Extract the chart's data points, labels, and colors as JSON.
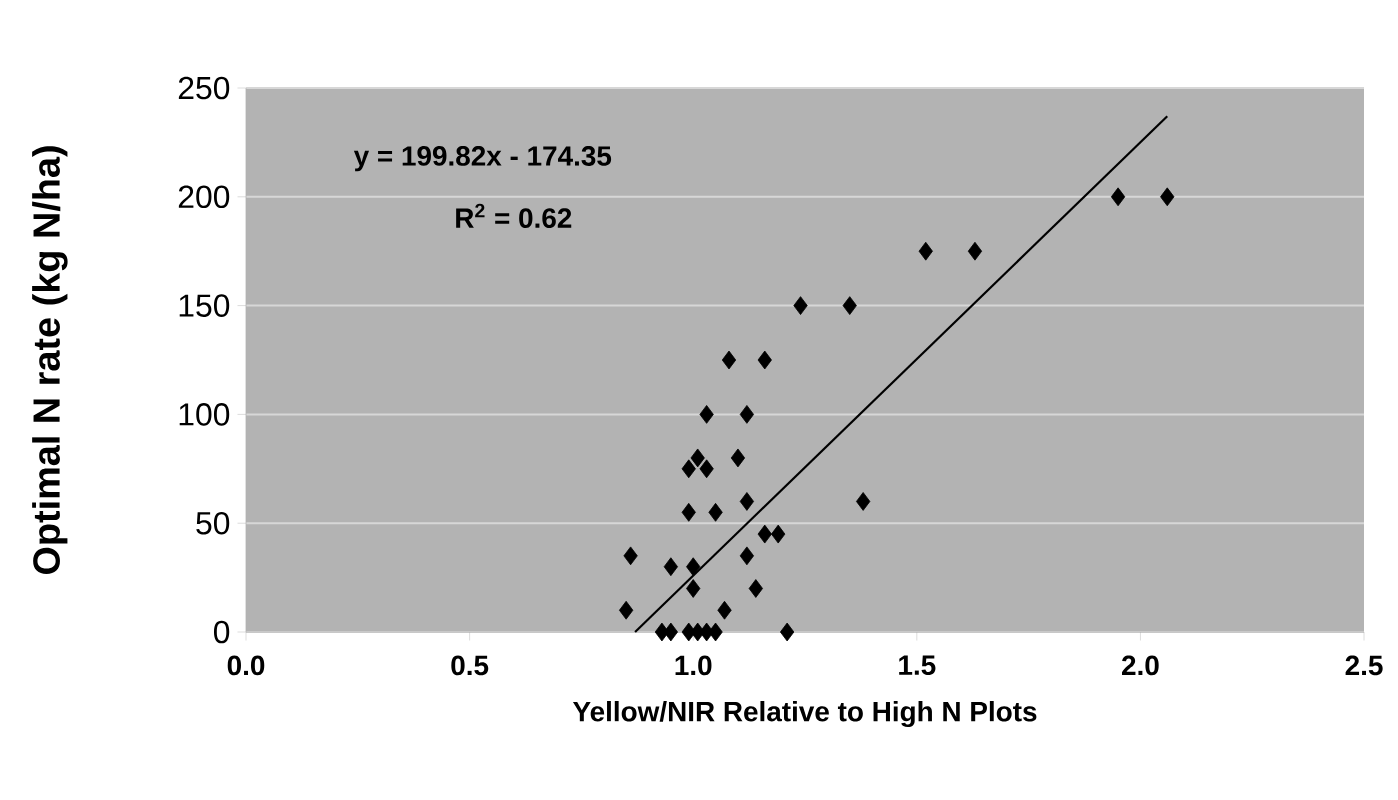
{
  "chart_data": {
    "type": "scatter",
    "xlabel": "Yellow/NIR Relative to High N Plots",
    "ylabel": "Optimal N rate (kg N/ha)",
    "annotations": [
      "y = 199.82x - 174.35",
      "R$^{2}$ = 0.62"
    ],
    "xlim": [
      0,
      2.5
    ],
    "xticks": [
      {
        "value": 0,
        "label": "0.0"
      },
      {
        "value": 0.5,
        "label": "0.5"
      },
      {
        "value": 1,
        "label": "1.0"
      },
      {
        "value": 1.5,
        "label": "1.5"
      },
      {
        "value": 2,
        "label": "2.0"
      },
      {
        "value": 2.5,
        "label": "2.5"
      }
    ],
    "ylim": [
      0,
      250
    ],
    "yticks": [
      0,
      50,
      100,
      150,
      200,
      250
    ],
    "grid": "y",
    "series": [
      {
        "color": "#000000",
        "marker": "diamond",
        "x": [
          0.86,
          0.85,
          0.95,
          1.0,
          1.0,
          1.07,
          0.93,
          0.95,
          0.99,
          1.01,
          1.03,
          1.05,
          1.21,
          0.99,
          1.05,
          1.12,
          1.14,
          1.12,
          1.16,
          1.19,
          0.99,
          1.01,
          1.03,
          1.1,
          1.03,
          1.12,
          1.08,
          1.16,
          1.24,
          1.35,
          1.38,
          1.52,
          1.63,
          1.95,
          2.06
        ],
        "values": [
          35,
          10,
          30,
          30,
          20,
          10,
          0,
          0,
          0,
          0,
          0,
          0,
          0,
          55,
          55,
          35,
          20,
          60,
          45,
          45,
          75,
          80,
          75,
          80,
          100,
          100,
          125,
          125,
          150,
          150,
          60,
          175,
          175,
          200,
          200
        ]
      },
      {
        "type": "line",
        "color": "#000000",
        "marker": "none",
        "line_style": "solid",
        "x": [
          0.87,
          2.06
        ],
        "values": [
          0,
          237
        ]
      }
    ]
  }
}
